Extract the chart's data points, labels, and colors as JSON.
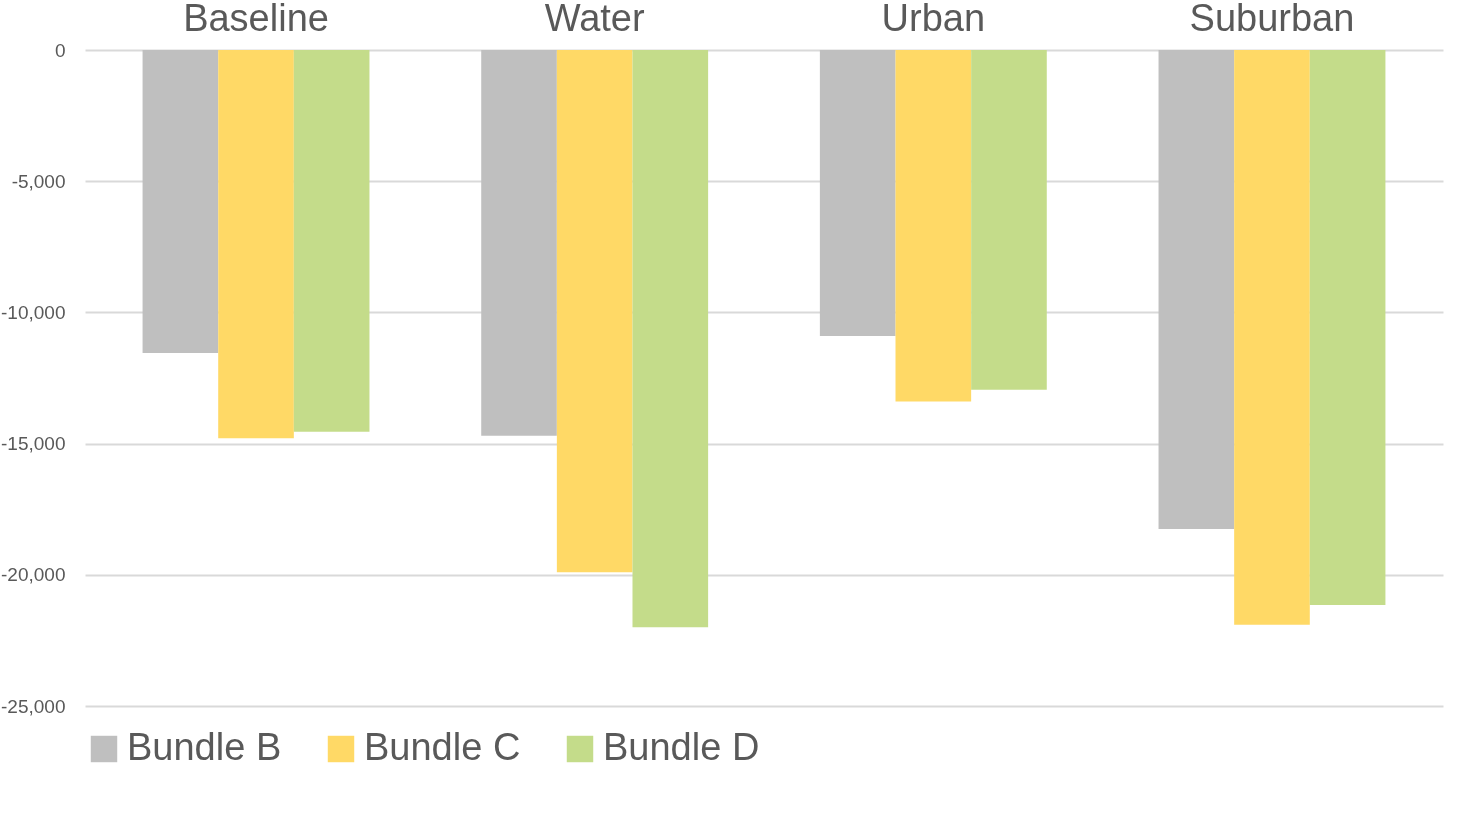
{
  "chart_data": {
    "type": "bar",
    "categories": [
      "Baseline",
      "Water",
      "Urban",
      "Suburban"
    ],
    "series": [
      {
        "name": "Bundle B",
        "color": "#bfbfbf",
        "values": [
          -11550,
          -14700,
          -10900,
          -18250
        ]
      },
      {
        "name": "Bundle C",
        "color": "#ffd966",
        "values": [
          -14800,
          -19900,
          -13400,
          -21900
        ]
      },
      {
        "name": "Bundle D",
        "color": "#c4dc8a",
        "values": [
          -14550,
          -22000,
          -12950,
          -21150
        ]
      }
    ],
    "ylim": [
      -25000,
      0
    ],
    "yticks": [
      {
        "value": -25000,
        "label": "-25,000"
      },
      {
        "value": -20000,
        "label": "-20,000"
      },
      {
        "value": -15000,
        "label": "-15,000"
      },
      {
        "value": -10000,
        "label": "-10,000"
      },
      {
        "value": -5000,
        "label": "-5,000"
      },
      {
        "value": 0,
        "label": "0"
      }
    ],
    "grid": "y",
    "legend": "bottom"
  }
}
